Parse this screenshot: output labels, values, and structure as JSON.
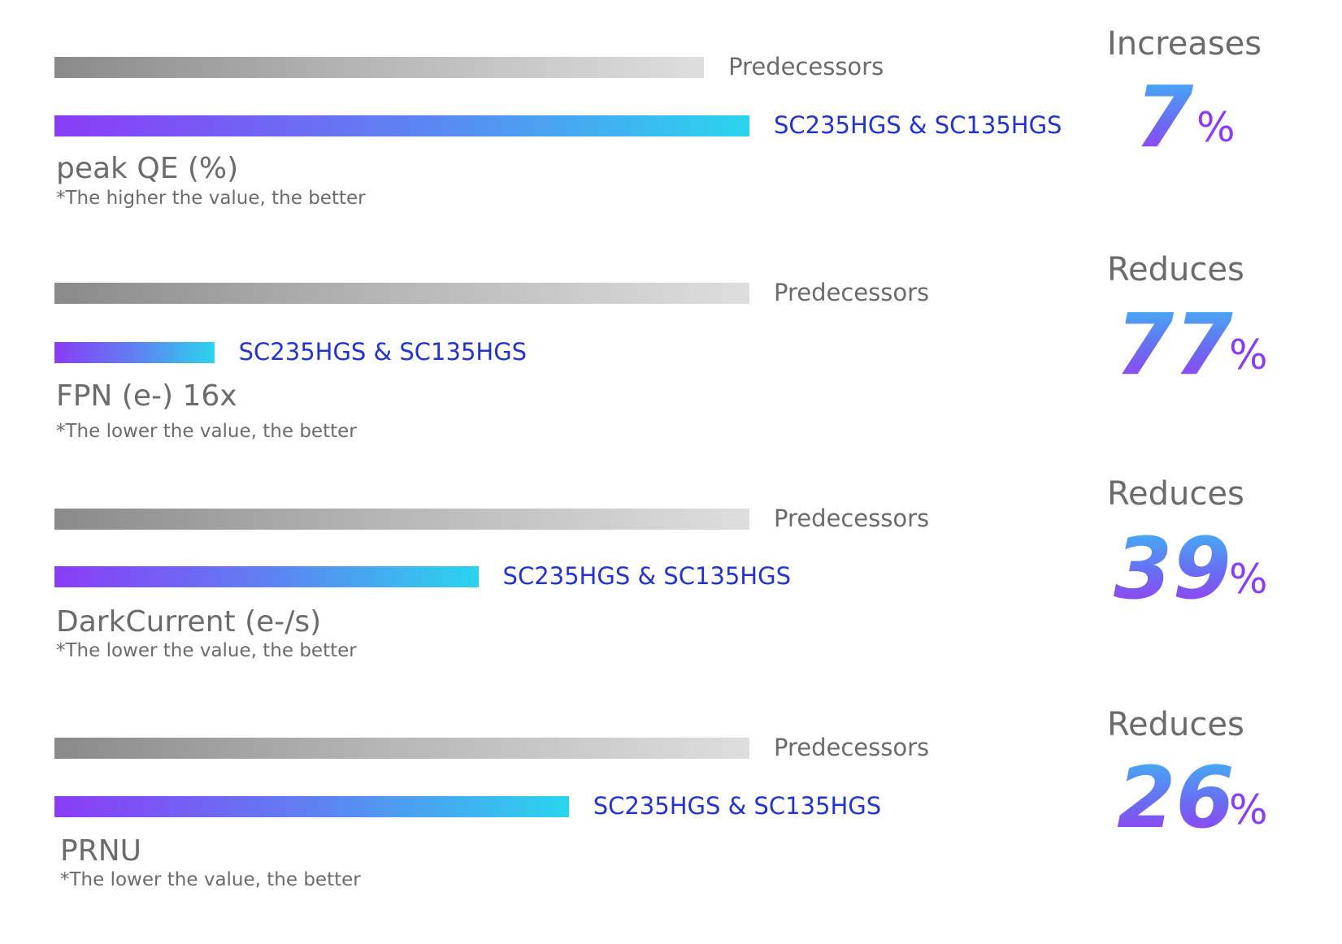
{
  "chart_data": {
    "type": "bar",
    "metrics": [
      {
        "name": "peak QE (%)",
        "note": "*The higher the value, the better",
        "series": [
          {
            "name": "Predecessors",
            "value": 100
          },
          {
            "name": "SC235HGS & SC135HGS",
            "value": 107
          }
        ],
        "change_word": "Increases",
        "change_value": "7",
        "change_unit": "%"
      },
      {
        "name": "FPN (e-) 16x",
        "note": "*The lower the value, the better",
        "series": [
          {
            "name": "Predecessors",
            "value": 100
          },
          {
            "name": "SC235HGS & SC135HGS",
            "value": 23
          }
        ],
        "change_word": "Reduces",
        "change_value": "77",
        "change_unit": "%"
      },
      {
        "name": "DarkCurrent (e-/s)",
        "note": "*The lower the value, the better",
        "series": [
          {
            "name": "Predecessors",
            "value": 100
          },
          {
            "name": "SC235HGS & SC135HGS",
            "value": 61
          }
        ],
        "change_word": "Reduces",
        "change_value": "39",
        "change_unit": "%"
      },
      {
        "name": "PRNU",
        "note": "*The lower the value, the better",
        "series": [
          {
            "name": "Predecessors",
            "value": 100
          },
          {
            "name": "SC235HGS & SC135HGS",
            "value": 74
          }
        ],
        "change_word": "Reduces",
        "change_value": "26",
        "change_unit": "%"
      }
    ],
    "colors": {
      "predecessors_gradient": [
        "#8a8a8a",
        "#dedede"
      ],
      "new_gradient": [
        "#8a3cf6",
        "#2ad4ee"
      ],
      "new_label": "#2134cf",
      "text": "#6b6b6b"
    }
  }
}
